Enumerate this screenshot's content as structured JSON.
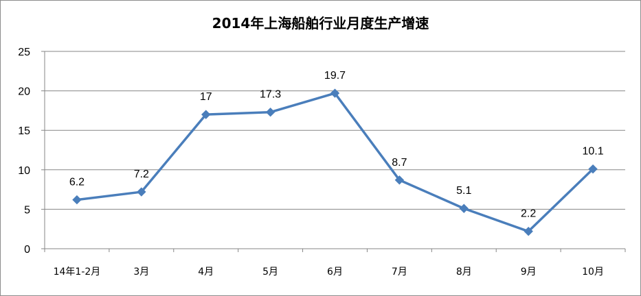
{
  "chart_data": {
    "type": "line",
    "title": "2014年上海船舶行业月度生产增速",
    "categories": [
      "14年1-2月",
      "3月",
      "4月",
      "5月",
      "6月",
      "7月",
      "8月",
      "9月",
      "10月"
    ],
    "series": [
      {
        "values": [
          6.2,
          7.2,
          17,
          17.3,
          19.7,
          8.7,
          5.1,
          2.2,
          10.1
        ]
      }
    ],
    "data_labels": [
      "6.2",
      "7.2",
      "17",
      "17.3",
      "19.7",
      "8.7",
      "5.1",
      "2.2",
      "10.1"
    ],
    "ylim": [
      0,
      25
    ],
    "yticks": [
      "0",
      "5",
      "10",
      "15",
      "20",
      "25"
    ],
    "grid": true,
    "legend": "none",
    "colors": {
      "line": "#4a7ebb",
      "grid": "#868686",
      "axis": "#868686"
    }
  }
}
